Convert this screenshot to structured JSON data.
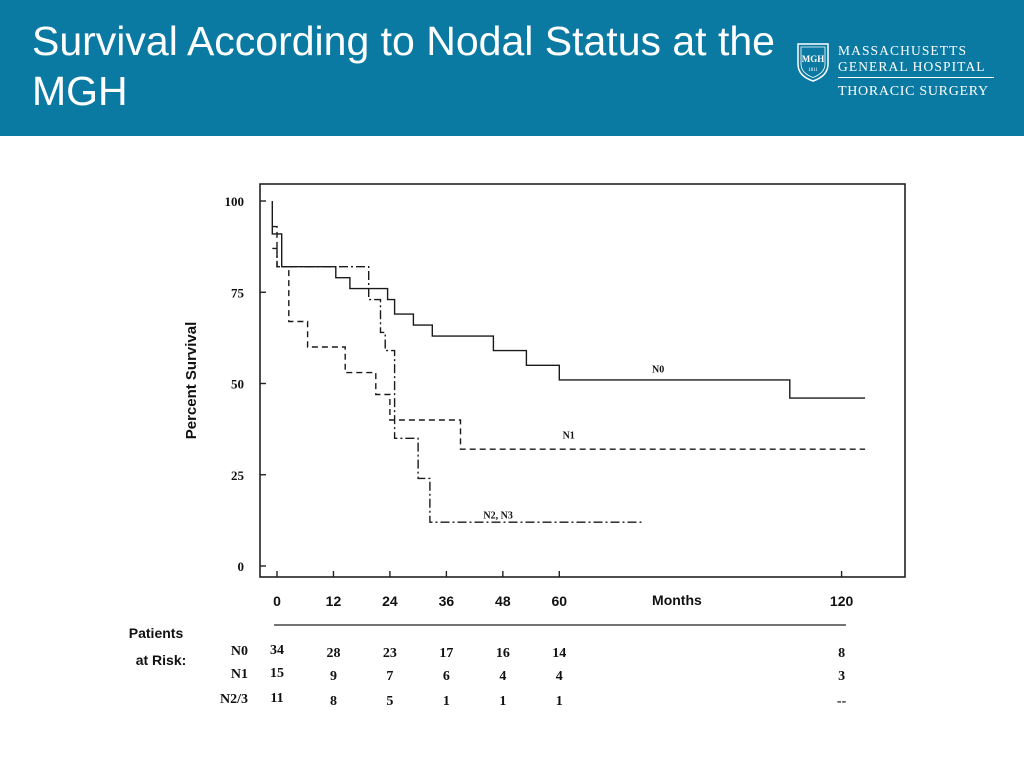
{
  "slide": {
    "title": "Survival According to Nodal Status at the MGH"
  },
  "logo": {
    "shield_text": "MGH",
    "shield_year": "1811",
    "org_line1": "MASSACHUSETTS",
    "org_line2": "GENERAL HOSPITAL",
    "department": "THORACIC SURGERY"
  },
  "chart_data": {
    "type": "line",
    "ylabel": "Percent Survival",
    "xlabel": "Months",
    "xlim": [
      0,
      128
    ],
    "ylim": [
      0,
      100
    ],
    "y_ticks": [
      0,
      25,
      50,
      75,
      100
    ],
    "x_ticks": [
      0,
      12,
      24,
      36,
      48,
      60,
      120
    ],
    "legend": "inline labels",
    "series": [
      {
        "name": "N0",
        "style": "solid",
        "points": [
          [
            -1,
            100
          ],
          [
            -1,
            91
          ],
          [
            1,
            91
          ],
          [
            1,
            82
          ],
          [
            12.5,
            82
          ],
          [
            12.5,
            79
          ],
          [
            15.5,
            79
          ],
          [
            15.5,
            76
          ],
          [
            23.5,
            76
          ],
          [
            23.5,
            73
          ],
          [
            25,
            73
          ],
          [
            25,
            69
          ],
          [
            29,
            69
          ],
          [
            29,
            66
          ],
          [
            33,
            66
          ],
          [
            33,
            63
          ],
          [
            46,
            63
          ],
          [
            46,
            59
          ],
          [
            53,
            59
          ],
          [
            53,
            55
          ],
          [
            60,
            55
          ],
          [
            60,
            51
          ],
          [
            109,
            51
          ],
          [
            109,
            46
          ],
          [
            125,
            46
          ]
        ]
      },
      {
        "name": "N1",
        "style": "dashed",
        "points": [
          [
            -1,
            93
          ],
          [
            0,
            93
          ],
          [
            0,
            82
          ],
          [
            2.5,
            82
          ],
          [
            2.5,
            67
          ],
          [
            6.5,
            67
          ],
          [
            6.5,
            60
          ],
          [
            14.5,
            60
          ],
          [
            14.5,
            53
          ],
          [
            21,
            53
          ],
          [
            21,
            47
          ],
          [
            24,
            47
          ],
          [
            24,
            40
          ],
          [
            39,
            40
          ],
          [
            39,
            32
          ],
          [
            125,
            32
          ]
        ]
      },
      {
        "name": "N2, N3",
        "style": "dashdot",
        "points": [
          [
            -1,
            87
          ],
          [
            0,
            87
          ],
          [
            0,
            82
          ],
          [
            19.5,
            82
          ],
          [
            19.5,
            73
          ],
          [
            22,
            73
          ],
          [
            22,
            64
          ],
          [
            23,
            64
          ],
          [
            23,
            59
          ],
          [
            25,
            59
          ],
          [
            25,
            35
          ],
          [
            30,
            35
          ],
          [
            30,
            24
          ],
          [
            32.5,
            24
          ],
          [
            32.5,
            12
          ],
          [
            78,
            12
          ]
        ]
      }
    ],
    "series_label_positions": [
      [
        81,
        53
      ],
      [
        62,
        35
      ],
      [
        47,
        13
      ]
    ],
    "risk_table": {
      "header_line1": "Patients",
      "header_line2": "at Risk:",
      "time_points": [
        0,
        12,
        24,
        36,
        48,
        60,
        120
      ],
      "rows": [
        {
          "label": "N0",
          "values": [
            "34",
            "28",
            "23",
            "17",
            "16",
            "14",
            "8"
          ]
        },
        {
          "label": "N1",
          "values": [
            "15",
            "9",
            "7",
            "6",
            "4",
            "4",
            "3"
          ]
        },
        {
          "label": "N2/3",
          "values": [
            "11",
            "8",
            "5",
            "1",
            "1",
            "1",
            "--"
          ]
        }
      ]
    }
  }
}
